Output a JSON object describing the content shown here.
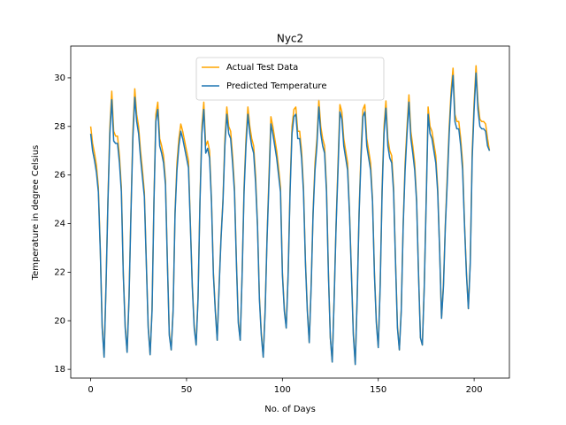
{
  "chart_data": {
    "type": "line",
    "title": "Nyc2",
    "x_label": "No. of Days",
    "y_label": "Temperature in degree Celsius",
    "xlim": [
      -10.4,
      218.4
    ],
    "xticks": [
      0,
      50,
      100,
      150,
      200
    ],
    "ylim": [
      17.64,
      31.31
    ],
    "yticks": [
      18,
      20,
      22,
      24,
      26,
      28,
      30
    ],
    "legend": "upper center",
    "x": [
      0,
      1,
      2,
      3,
      4,
      5,
      6,
      7,
      8,
      9,
      10,
      11,
      12,
      13,
      14,
      15,
      16,
      17,
      18,
      19,
      20,
      21,
      22,
      23,
      24,
      25,
      26,
      27,
      28,
      29,
      30,
      31,
      32,
      33,
      34,
      35,
      36,
      37,
      38,
      39,
      40,
      41,
      42,
      43,
      44,
      45,
      46,
      47,
      48,
      49,
      50,
      51,
      52,
      53,
      54,
      55,
      56,
      57,
      58,
      59,
      60,
      61,
      62,
      63,
      64,
      65,
      66,
      67,
      68,
      69,
      70,
      71,
      72,
      73,
      74,
      75,
      76,
      77,
      78,
      79,
      80,
      81,
      82,
      83,
      84,
      85,
      86,
      87,
      88,
      89,
      90,
      91,
      92,
      93,
      94,
      95,
      96,
      97,
      98,
      99,
      100,
      101,
      102,
      103,
      104,
      105,
      106,
      107,
      108,
      109,
      110,
      111,
      112,
      113,
      114,
      115,
      116,
      117,
      118,
      119,
      120,
      121,
      122,
      123,
      124,
      125,
      126,
      127,
      128,
      129,
      130,
      131,
      132,
      133,
      134,
      135,
      136,
      137,
      138,
      139,
      140,
      141,
      142,
      143,
      144,
      145,
      146,
      147,
      148,
      149,
      150,
      151,
      152,
      153,
      154,
      155,
      156,
      157,
      158,
      159,
      160,
      161,
      162,
      163,
      164,
      165,
      166,
      167,
      168,
      169,
      170,
      171,
      172,
      173,
      174,
      175,
      176,
      177,
      178,
      179,
      180,
      181,
      182,
      183,
      184,
      185,
      186,
      187,
      188,
      189,
      190,
      191,
      192,
      193,
      194,
      195,
      196,
      197,
      198,
      199,
      200,
      201,
      202,
      203,
      204,
      205,
      206,
      207,
      208
    ],
    "series": [
      {
        "name": "Actual Test Data",
        "color": "#ffa500",
        "values": [
          28.0,
          27.3,
          26.9,
          26.4,
          25.5,
          23.0,
          19.8,
          18.5,
          21.5,
          25.0,
          28.0,
          29.45,
          27.8,
          27.6,
          27.6,
          26.8,
          25.5,
          22.0,
          19.8,
          18.7,
          21.0,
          24.5,
          27.8,
          29.55,
          28.5,
          28.0,
          27.0,
          26.2,
          25.3,
          22.5,
          19.8,
          18.6,
          20.5,
          25.0,
          28.5,
          29.0,
          27.5,
          27.2,
          26.8,
          25.8,
          22.5,
          19.5,
          18.8,
          20.5,
          24.5,
          26.5,
          27.5,
          28.1,
          27.8,
          27.4,
          27.0,
          26.6,
          24.0,
          21.5,
          19.8,
          19.0,
          21.0,
          25.0,
          28.0,
          29.0,
          27.2,
          27.4,
          27.0,
          25.0,
          22.0,
          20.5,
          19.2,
          21.5,
          23.5,
          25.0,
          27.5,
          28.8,
          28.0,
          27.8,
          26.8,
          25.5,
          22.5,
          20.0,
          19.2,
          22.0,
          25.5,
          27.5,
          28.8,
          28.0,
          27.5,
          27.2,
          26.0,
          24.0,
          21.0,
          19.5,
          18.5,
          20.5,
          23.5,
          26.0,
          28.4,
          28.0,
          27.5,
          27.0,
          26.3,
          25.5,
          22.0,
          20.5,
          19.7,
          22.0,
          25.5,
          28.0,
          28.7,
          28.8,
          27.8,
          27.8,
          27.0,
          25.5,
          22.5,
          20.5,
          19.1,
          21.5,
          24.5,
          26.5,
          27.5,
          29.1,
          28.0,
          27.5,
          27.2,
          25.5,
          22.0,
          19.3,
          18.3,
          21.0,
          24.0,
          26.5,
          28.9,
          28.6,
          27.5,
          27.0,
          26.5,
          24.5,
          22.0,
          19.5,
          18.2,
          21.0,
          24.5,
          27.0,
          28.7,
          28.9,
          27.5,
          27.0,
          26.5,
          25.0,
          22.0,
          20.0,
          18.9,
          21.5,
          25.5,
          28.0,
          29.05,
          27.5,
          27.0,
          26.8,
          25.5,
          22.5,
          19.8,
          18.8,
          20.5,
          24.0,
          26.5,
          28.0,
          29.3,
          27.8,
          27.2,
          26.5,
          25.0,
          22.0,
          19.3,
          19.0,
          21.5,
          25.0,
          28.8,
          28.0,
          27.8,
          27.3,
          26.8,
          25.5,
          23.0,
          20.1,
          21.5,
          24.0,
          26.0,
          28.0,
          29.5,
          30.4,
          28.5,
          28.2,
          28.2,
          27.5,
          26.5,
          24.0,
          22.0,
          20.5,
          22.5,
          27.0,
          29.0,
          30.5,
          29.0,
          28.3,
          28.2,
          28.2,
          28.1,
          27.5,
          27.0
        ]
      },
      {
        "name": "Predicted Temperature",
        "color": "#1f77b4",
        "values": [
          27.7,
          27.0,
          26.6,
          26.1,
          25.3,
          22.9,
          19.7,
          18.5,
          21.4,
          24.9,
          27.7,
          29.1,
          27.4,
          27.3,
          27.3,
          26.5,
          25.3,
          21.9,
          19.7,
          18.7,
          20.9,
          24.4,
          27.5,
          29.2,
          28.2,
          27.7,
          26.7,
          25.9,
          25.1,
          22.4,
          19.7,
          18.6,
          20.4,
          24.9,
          28.2,
          28.7,
          27.2,
          26.9,
          26.5,
          25.6,
          22.4,
          19.4,
          18.8,
          20.4,
          24.4,
          26.2,
          27.2,
          27.8,
          27.5,
          27.1,
          26.7,
          26.3,
          23.9,
          21.4,
          19.7,
          19.0,
          20.9,
          24.9,
          27.7,
          28.7,
          26.9,
          27.1,
          26.7,
          24.9,
          21.9,
          20.4,
          19.2,
          21.4,
          23.4,
          24.9,
          27.2,
          28.5,
          27.7,
          27.5,
          26.5,
          25.3,
          22.4,
          19.9,
          19.2,
          21.9,
          25.3,
          27.2,
          28.5,
          27.7,
          27.2,
          26.9,
          25.7,
          23.9,
          20.9,
          19.4,
          18.5,
          20.4,
          23.4,
          25.7,
          28.1,
          27.7,
          27.2,
          26.7,
          26.0,
          25.3,
          21.9,
          20.4,
          19.7,
          21.9,
          25.3,
          27.7,
          28.4,
          28.5,
          27.5,
          27.5,
          26.7,
          25.3,
          22.4,
          20.4,
          19.1,
          21.4,
          24.4,
          26.2,
          27.2,
          28.8,
          27.7,
          27.2,
          26.9,
          25.3,
          21.9,
          19.3,
          18.3,
          20.9,
          23.9,
          26.2,
          28.6,
          28.3,
          27.2,
          26.7,
          26.2,
          24.4,
          21.9,
          19.4,
          18.2,
          20.9,
          24.4,
          26.7,
          28.4,
          28.6,
          27.2,
          26.7,
          26.2,
          24.9,
          21.9,
          19.9,
          18.9,
          21.4,
          25.3,
          27.7,
          28.75,
          27.2,
          26.7,
          26.5,
          25.3,
          22.4,
          19.7,
          18.8,
          20.4,
          23.9,
          26.2,
          27.7,
          29.0,
          27.5,
          26.9,
          26.2,
          24.9,
          21.9,
          19.3,
          19.0,
          21.4,
          24.9,
          28.5,
          27.7,
          27.5,
          27.0,
          26.5,
          25.3,
          22.9,
          20.1,
          21.4,
          23.9,
          25.7,
          27.7,
          29.2,
          30.1,
          28.2,
          27.9,
          27.9,
          27.2,
          26.2,
          23.9,
          21.9,
          20.5,
          22.4,
          26.7,
          28.7,
          30.2,
          28.7,
          28.0,
          27.9,
          27.9,
          27.8,
          27.2,
          27.0
        ]
      }
    ]
  }
}
